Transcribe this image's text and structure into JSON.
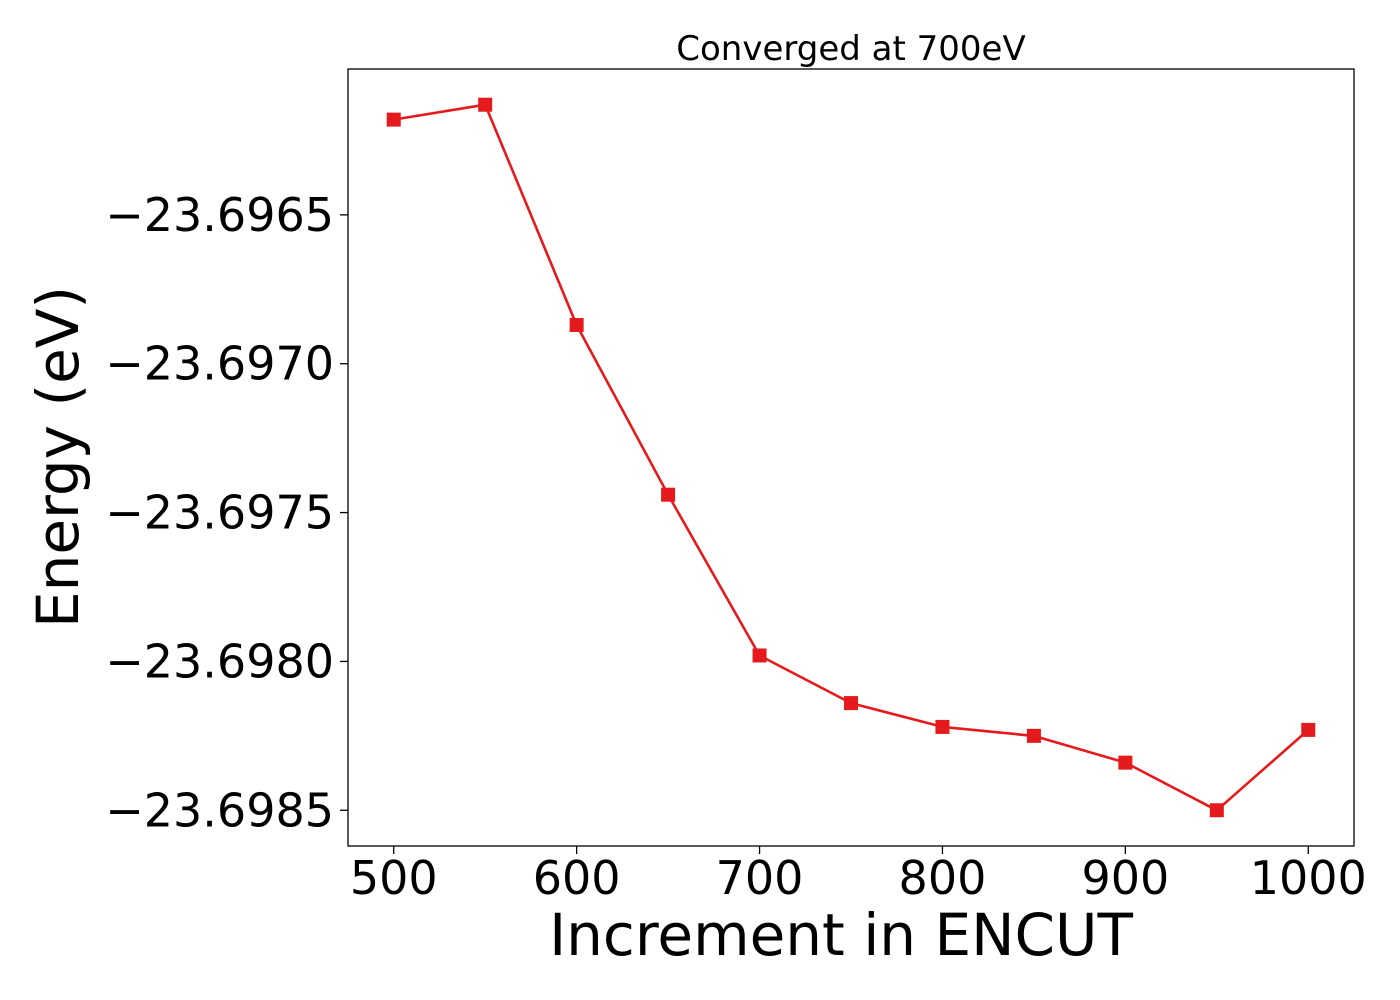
{
  "chart_data": {
    "type": "line",
    "title": "Converged at 700eV",
    "xlabel": "Increment in ENCUT",
    "ylabel": "Energy (eV)",
    "x": [
      500,
      550,
      600,
      650,
      700,
      750,
      800,
      850,
      900,
      950,
      1000
    ],
    "series": [
      {
        "values": [
          -23.69618,
          -23.69613,
          -23.69687,
          -23.69744,
          -23.69798,
          -23.69814,
          -23.69822,
          -23.69825,
          -23.69834,
          -23.6985,
          -23.69823
        ],
        "color": "#e41a1c",
        "marker": "square"
      }
    ],
    "xlim": [
      475,
      1025
    ],
    "ylim": [
      -23.69862,
      -23.69601
    ],
    "xticks": [
      500,
      600,
      700,
      800,
      900,
      1000
    ],
    "xtick_labels": [
      "500",
      "600",
      "700",
      "800",
      "900",
      "1000"
    ],
    "yticks": [
      -23.6965,
      -23.697,
      -23.6975,
      -23.698,
      -23.6985
    ],
    "ytick_labels": [
      "−23.6965",
      "−23.6970",
      "−23.6975",
      "−23.6980",
      "−23.6985"
    ],
    "grid": false,
    "legend": "none"
  }
}
